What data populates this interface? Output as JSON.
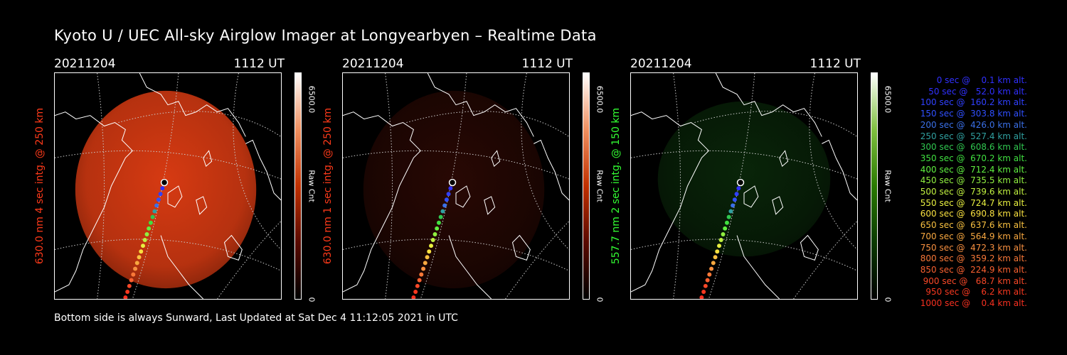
{
  "title": "Kyoto U / UEC All-sky Airglow Imager at Longyearbyen – Realtime Data",
  "footer": "Bottom side is always Sunward, Last Updated at Sat Dec  4 11:12:05 2021 in UTC",
  "panels": [
    {
      "date": "20211204",
      "time": "1112 UT",
      "ylabel": "630.0 nm 4 sec intg. @ 250 km",
      "label_color": "#ff3a1a",
      "cbar_max": "6500.0",
      "cbar_unit": "Raw Cnt",
      "cbar_min": "0",
      "glow": "#d63a12",
      "glow_level": 0.85,
      "colormap": "red"
    },
    {
      "date": "20211204",
      "time": "1112 UT",
      "ylabel": "630.0 nm 1 sec intg. @ 250 km",
      "label_color": "#ff3a1a",
      "cbar_max": "6500.0",
      "cbar_unit": "Raw Cnt",
      "cbar_min": "0",
      "glow": "#5a1208",
      "glow_level": 0.3,
      "colormap": "red"
    },
    {
      "date": "20211204",
      "time": "1112 UT",
      "ylabel": "557.7 nm 2 sec intg. @ 150 km",
      "label_color": "#33ff33",
      "cbar_max": "6500.0",
      "cbar_unit": "Raw Cnt",
      "cbar_min": "0",
      "glow": "#124a12",
      "glow_level": 0.35,
      "colormap": "green"
    }
  ],
  "legend": [
    {
      "text": "0 sec @    0.1 km alt.",
      "color": "#3030ff"
    },
    {
      "text": "50 sec @   52.0 km alt.",
      "color": "#3030ff"
    },
    {
      "text": "100 sec @  160.2 km alt.",
      "color": "#3040ff"
    },
    {
      "text": "150 sec @  303.8 km alt.",
      "color": "#3050ff"
    },
    {
      "text": "200 sec @  426.0 km alt.",
      "color": "#3a70e8"
    },
    {
      "text": "250 sec @  527.4 km alt.",
      "color": "#30a0a0"
    },
    {
      "text": "300 sec @  608.6 km alt.",
      "color": "#30c850"
    },
    {
      "text": "350 sec @  670.2 km alt.",
      "color": "#40e040"
    },
    {
      "text": "400 sec @  712.4 km alt.",
      "color": "#60f040"
    },
    {
      "text": "450 sec @  735.5 km alt.",
      "color": "#90f040"
    },
    {
      "text": "500 sec @  739.6 km alt.",
      "color": "#c0f040"
    },
    {
      "text": "550 sec @  724.7 km alt.",
      "color": "#e8f040"
    },
    {
      "text": "600 sec @  690.8 km alt.",
      "color": "#f8e040"
    },
    {
      "text": "650 sec @  637.6 km alt.",
      "color": "#f8c040"
    },
    {
      "text": "700 sec @  564.9 km alt.",
      "color": "#f8a840"
    },
    {
      "text": "750 sec @  472.3 km alt.",
      "color": "#f89040"
    },
    {
      "text": "800 sec @  359.2 km alt.",
      "color": "#f87838"
    },
    {
      "text": "850 sec @  224.9 km alt.",
      "color": "#f86030"
    },
    {
      "text": "900 sec @   68.7 km alt.",
      "color": "#f84828"
    },
    {
      "text": "950 sec @    6.2 km alt.",
      "color": "#f83820"
    },
    {
      "text": "1000 sec @    0.4 km alt.",
      "color": "#f83020"
    }
  ]
}
